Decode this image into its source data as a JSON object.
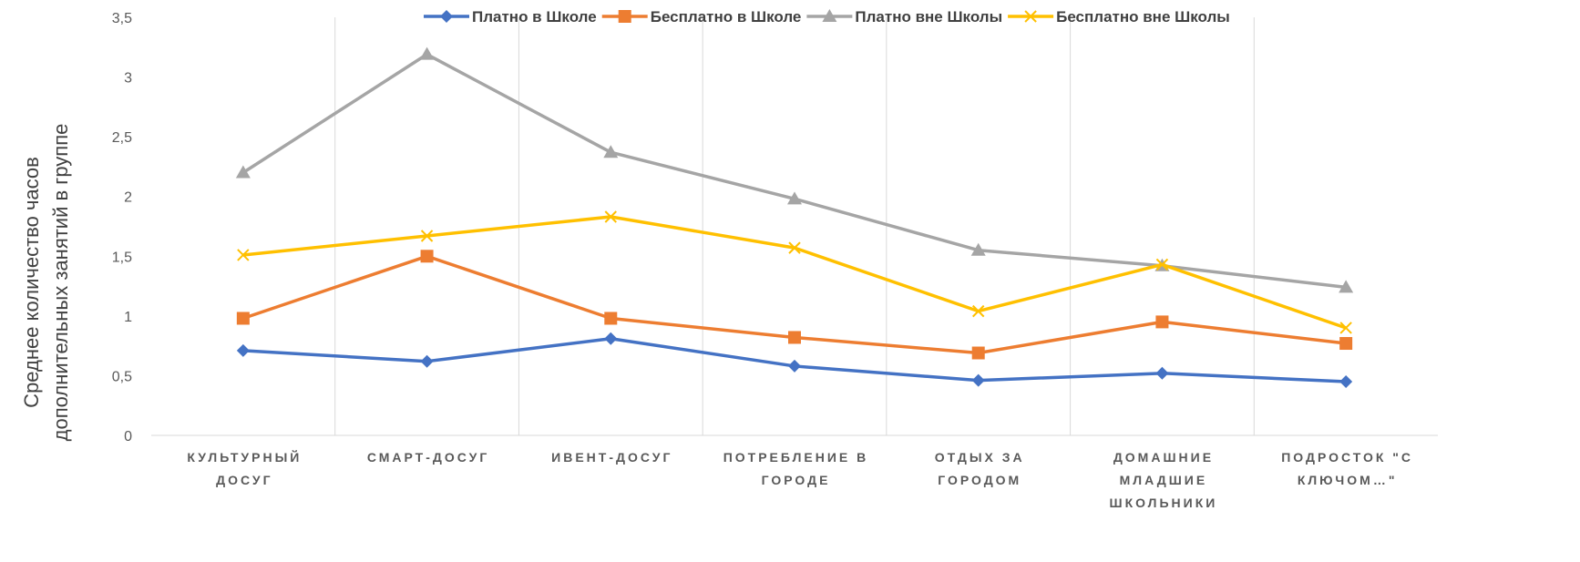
{
  "chart_data": {
    "type": "line",
    "ylabel": [
      "Среднее количество часов",
      "дополнительных занятий в группе"
    ],
    "categories": [
      [
        "КУЛЬТУРНЫЙ",
        "ДОСУГ"
      ],
      [
        "СМАРТ-ДОСУГ"
      ],
      [
        "ИВЕНТ-ДОСУГ"
      ],
      [
        "ПОТРЕБЛЕНИЕ В",
        "ГОРОДЕ"
      ],
      [
        "ОТДЫХ ЗА",
        "ГОРОДОМ"
      ],
      [
        "ДОМАШНИЕ",
        "МЛАДШИЕ",
        "ШКОЛЬНИКИ"
      ],
      [
        "ПОДРОСТОК \"С",
        "КЛЮЧОМ…\""
      ]
    ],
    "series": [
      {
        "name": "Платно в Школе",
        "color": "#4472c4",
        "marker": "diamond",
        "values": [
          0.71,
          0.62,
          0.81,
          0.58,
          0.46,
          0.52,
          0.45
        ]
      },
      {
        "name": "Бесплатно в Школе",
        "color": "#ed7d31",
        "marker": "square",
        "values": [
          0.98,
          1.5,
          0.98,
          0.82,
          0.69,
          0.95,
          0.77
        ]
      },
      {
        "name": "Платно вне Школы",
        "color": "#a5a5a5",
        "marker": "triangle",
        "values": [
          2.2,
          3.19,
          2.37,
          1.98,
          1.55,
          1.42,
          1.24
        ]
      },
      {
        "name": "Бесплатно вне Школы",
        "color": "#ffc000",
        "marker": "x",
        "values": [
          1.51,
          1.67,
          1.83,
          1.57,
          1.04,
          1.43,
          0.9
        ]
      }
    ],
    "ylim": [
      0,
      3.5
    ],
    "yticks": [
      0,
      {
        "value": 0.5,
        "label": "0,5"
      },
      1,
      {
        "value": 1.5,
        "label": "1,5"
      },
      2,
      {
        "value": 2.5,
        "label": "2,5"
      },
      3,
      {
        "value": 3.5,
        "label": "3,5"
      }
    ],
    "legend": "top"
  }
}
